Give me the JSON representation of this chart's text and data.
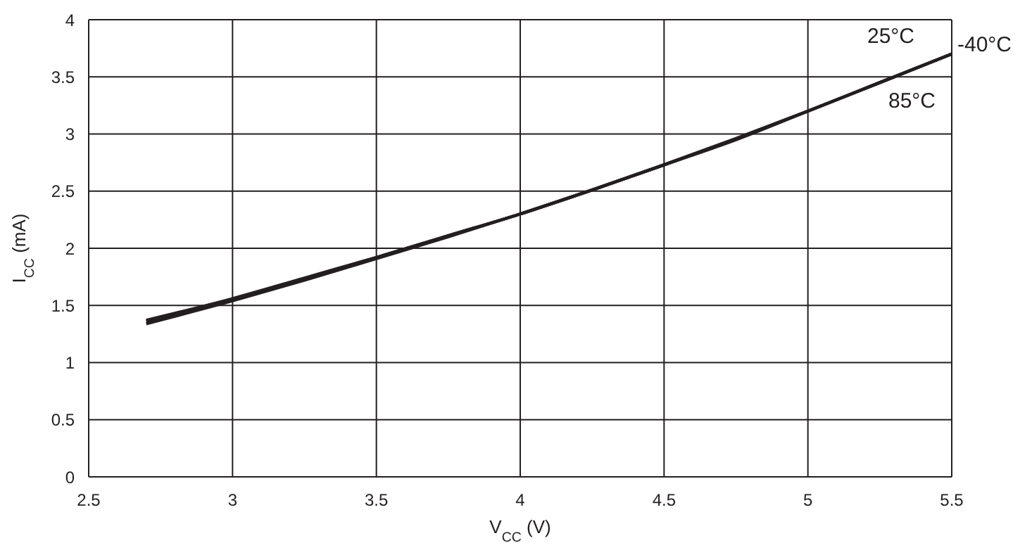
{
  "chart_data": {
    "type": "line",
    "xlabel": "V$_{CC}$ (V)",
    "ylabel": "I$_{CC}$ (mA)",
    "x": [
      2.7,
      3.0,
      3.25,
      3.5,
      3.75,
      4.0,
      4.25,
      4.5,
      4.75,
      5.0,
      5.25,
      5.5
    ],
    "series": [
      {
        "name": "25°C",
        "color": "#231f20",
        "values": [
          1.36,
          1.55,
          1.73,
          1.92,
          2.11,
          2.3,
          2.51,
          2.73,
          2.96,
          3.2,
          3.45,
          3.7
        ]
      },
      {
        "name": "-40°C",
        "color": "#231f20",
        "values": [
          1.37,
          1.56,
          1.74,
          1.92,
          2.11,
          2.3,
          2.51,
          2.73,
          2.96,
          3.2,
          3.45,
          3.7
        ]
      },
      {
        "name": "85°C",
        "color": "#231f20",
        "values": [
          1.34,
          1.54,
          1.72,
          1.91,
          2.1,
          2.3,
          2.51,
          2.73,
          2.95,
          3.2,
          3.45,
          3.7
        ]
      }
    ],
    "xlim": [
      2.5,
      5.5
    ],
    "xticks": [
      2.5,
      3,
      3.5,
      4,
      4.5,
      5,
      5.5
    ],
    "ylim": [
      0,
      4
    ],
    "yticks": [
      0,
      0.5,
      1,
      1.5,
      2,
      2.5,
      3,
      3.5,
      4
    ],
    "grid": true,
    "legend": false,
    "marker": "none",
    "line_style": "solid"
  }
}
